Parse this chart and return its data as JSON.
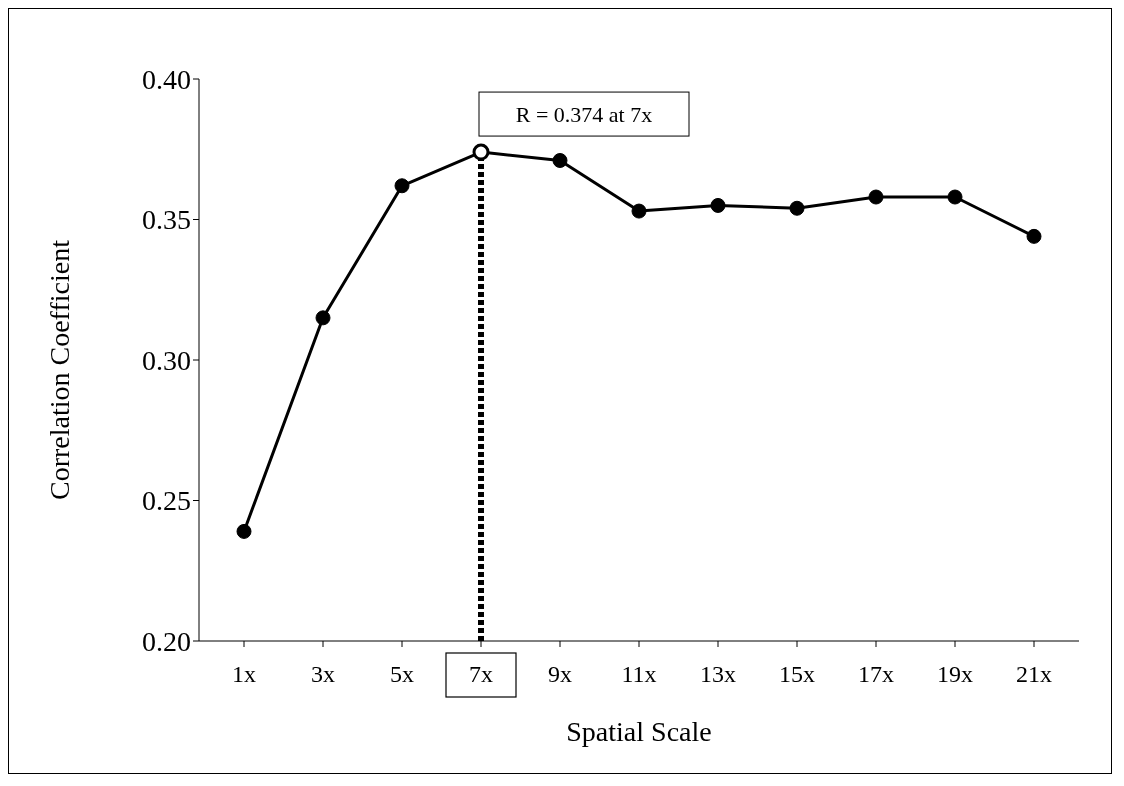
{
  "chart_data": {
    "type": "line",
    "xlabel": "Spatial Scale",
    "ylabel": "Correlation Coefficient",
    "categories": [
      "1x",
      "3x",
      "5x",
      "7x",
      "9x",
      "11x",
      "13x",
      "15x",
      "17x",
      "19x",
      "21x"
    ],
    "series": [
      {
        "color": "#000000",
        "values": [
          0.239,
          0.315,
          0.362,
          0.374,
          0.371,
          0.353,
          0.355,
          0.354,
          0.358,
          0.358,
          0.344
        ]
      }
    ],
    "ylim": [
      0.2,
      0.4
    ],
    "yticks": [
      {
        "value": 0.2,
        "label": "0.20"
      },
      0.25,
      {
        "value": 0.3,
        "label": "0.30"
      },
      0.35,
      {
        "value": 0.4,
        "label": "0.40"
      }
    ],
    "grid": false,
    "legend": false,
    "marker": "circle",
    "line_style": "solid",
    "ref_lines": [
      {
        "axis": "x",
        "value": "7x",
        "color": "#000000",
        "line_style": "dashed"
      }
    ],
    "annotations": [
      {
        "text": "R = 0.374 at 7x",
        "x": "7x",
        "y": 0.374
      }
    ]
  }
}
